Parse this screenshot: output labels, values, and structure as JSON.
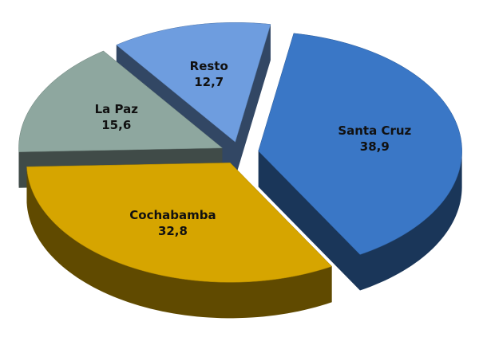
{
  "chart_data": {
    "type": "pie3d",
    "categories": [
      "Santa Cruz",
      "Cochabamba",
      "La Paz",
      "Resto"
    ],
    "values": [
      38.9,
      32.8,
      15.6,
      12.7
    ],
    "value_labels": [
      "38,9",
      "32,8",
      "15,6",
      "12,7"
    ],
    "colors": [
      "#3a77c6",
      "#d6a500",
      "#8ea79f",
      "#6e9ddf"
    ]
  }
}
